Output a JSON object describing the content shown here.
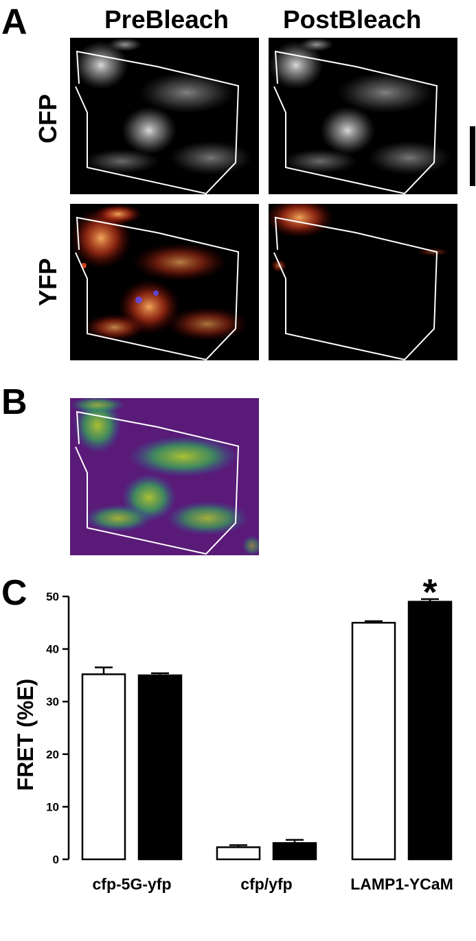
{
  "panel_labels": {
    "a": "A",
    "b": "B",
    "c": "C"
  },
  "panel_a": {
    "columns": [
      "PreBleach",
      "PostBleach"
    ],
    "rows": [
      "CFP",
      "YFP"
    ]
  },
  "chart_data": {
    "type": "bar",
    "categories": [
      "cfp-5G-yfp",
      "cfp/yfp",
      "LAMP1-YCaM"
    ],
    "ylabel": "FRET (%E)",
    "ylim": [
      0,
      50
    ],
    "yticks": [
      0,
      10,
      20,
      30,
      40,
      50
    ],
    "series": [
      {
        "fill": "#ffffff",
        "values": [
          35.2,
          2.3,
          45.0
        ],
        "errors": [
          1.3,
          0.4,
          0.3
        ]
      },
      {
        "fill": "#000000",
        "values": [
          35.0,
          3.1,
          49.0
        ],
        "errors": [
          0.4,
          0.6,
          0.5
        ]
      }
    ],
    "annotations": [
      {
        "text": "*",
        "category": "LAMP1-YCaM",
        "series": 1
      }
    ],
    "grid": false,
    "legend": "none"
  }
}
